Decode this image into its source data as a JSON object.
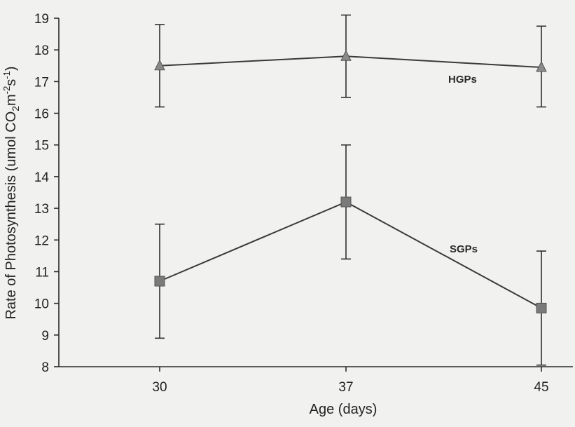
{
  "chart_data": {
    "type": "line",
    "xlabel": "Age (days)",
    "ylabel": "Rate of Photosynthesis (umol CO2m-2s-1)",
    "ylim": [
      8,
      19
    ],
    "yticks": [
      8,
      9,
      10,
      11,
      12,
      13,
      14,
      15,
      16,
      17,
      18,
      19
    ],
    "categories": [
      "30",
      "37",
      "45"
    ],
    "grid": false,
    "series": [
      {
        "name": "HGPs",
        "marker": "triangle",
        "values": [
          17.5,
          17.8,
          17.45
        ],
        "err_low": [
          16.2,
          16.5,
          16.2
        ],
        "err_high": [
          18.8,
          19.1,
          18.75
        ]
      },
      {
        "name": "SGPs",
        "marker": "square",
        "values": [
          10.7,
          13.2,
          9.85
        ],
        "err_low": [
          8.9,
          11.4,
          8.05
        ],
        "err_high": [
          12.5,
          15.0,
          11.65
        ]
      }
    ]
  }
}
